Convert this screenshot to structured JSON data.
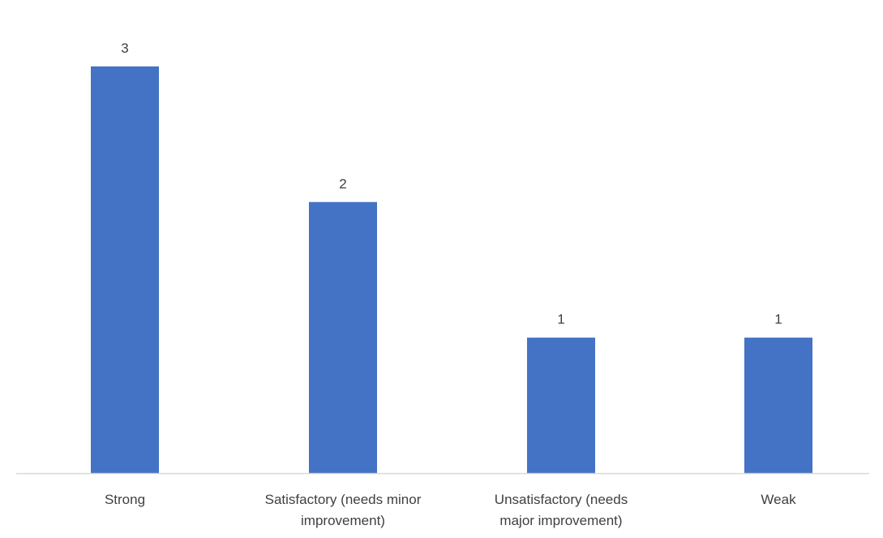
{
  "chart_data": {
    "type": "bar",
    "title": "",
    "xlabel": "",
    "ylabel": "",
    "categories": [
      [
        "Strong"
      ],
      [
        "Satisfactory (needs minor",
        "improvement)"
      ],
      [
        "Unsatisfactory (needs",
        "major improvement)"
      ],
      [
        "Weak"
      ]
    ],
    "values": [
      3,
      2,
      1,
      1
    ],
    "data_labels": [
      "3",
      "2",
      "1",
      "1"
    ],
    "ylim": [
      0,
      3
    ],
    "grid": false,
    "legend": "none",
    "bar_color": "#4472C4",
    "axis_color": "#D9D9D9",
    "text_color": "#404040"
  }
}
